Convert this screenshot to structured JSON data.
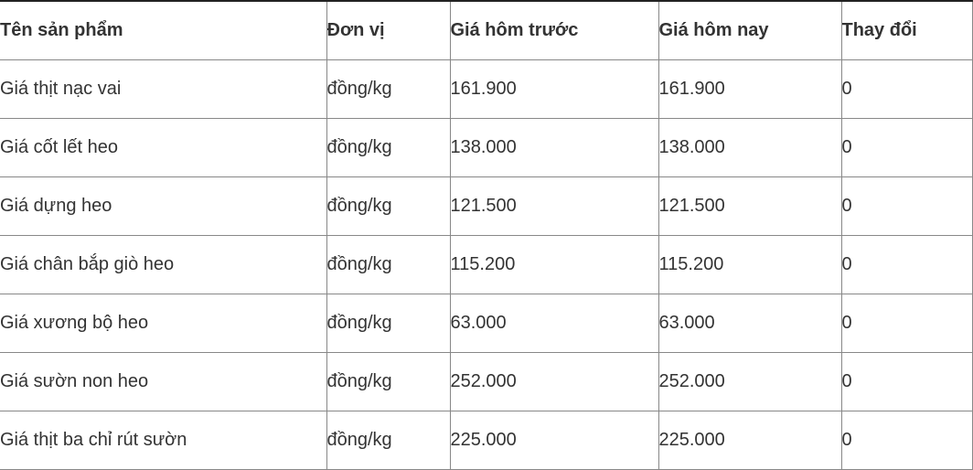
{
  "table": {
    "headers": [
      "Tên sản phẩm",
      "Đơn vị",
      "Giá hôm trước",
      "Giá hôm nay",
      "Thay đổi"
    ],
    "rows": [
      [
        "Giá thịt nạc vai",
        "đồng/kg",
        "161.900",
        "161.900",
        "0"
      ],
      [
        "Giá cốt lết heo",
        "đồng/kg",
        "138.000",
        "138.000",
        "0"
      ],
      [
        "Giá dựng heo",
        "đồng/kg",
        "121.500",
        "121.500",
        "0"
      ],
      [
        "Giá chân bắp giò heo",
        "đồng/kg",
        "115.200",
        "115.200",
        "0"
      ],
      [
        "Giá xương bộ heo",
        "đồng/kg",
        "63.000",
        "63.000",
        "0"
      ],
      [
        "Giá sườn non heo",
        "đồng/kg",
        "252.000",
        "252.000",
        "0"
      ],
      [
        "Giá thịt ba chỉ rút sườn",
        "đồng/kg",
        "225.000",
        "225.000",
        "0"
      ]
    ]
  }
}
